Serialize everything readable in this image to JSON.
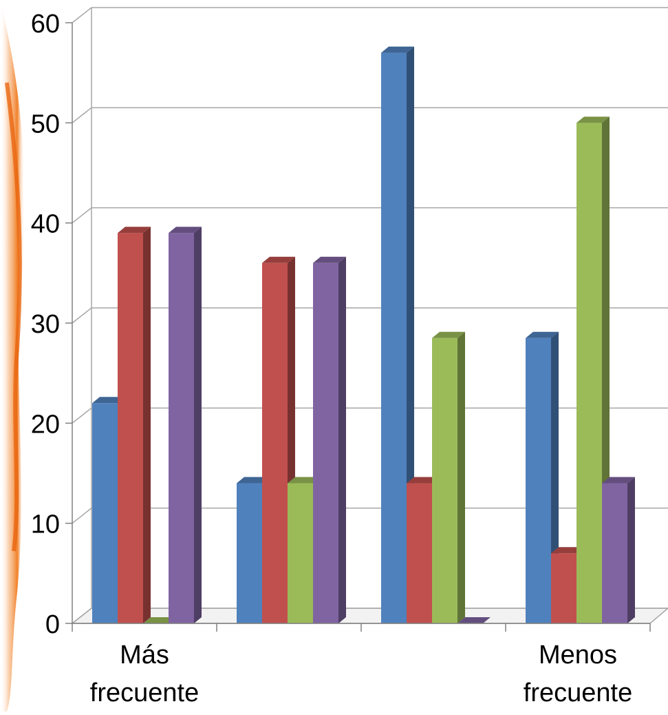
{
  "chart_data": {
    "type": "bar",
    "style": "3d-clustered-column",
    "title": "",
    "xlabel": "",
    "ylabel": "",
    "ylim": [
      0,
      60
    ],
    "yticks": [
      0,
      10,
      20,
      30,
      40,
      50,
      60
    ],
    "grid": true,
    "legend": "none",
    "categories": [
      [
        "Más",
        "frecuente"
      ],
      [
        "",
        ""
      ],
      [
        "",
        ""
      ],
      [
        "Menos",
        "frecuente"
      ]
    ],
    "series": [
      {
        "color": "#4F81BD",
        "values": [
          22,
          14,
          57,
          28.5
        ]
      },
      {
        "color": "#C0504D",
        "values": [
          39,
          36,
          14,
          7
        ]
      },
      {
        "color": "#9BBB59",
        "values": [
          0,
          14,
          28.5,
          50
        ]
      },
      {
        "color": "#8064A2",
        "values": [
          39,
          36,
          0,
          14
        ]
      }
    ]
  }
}
